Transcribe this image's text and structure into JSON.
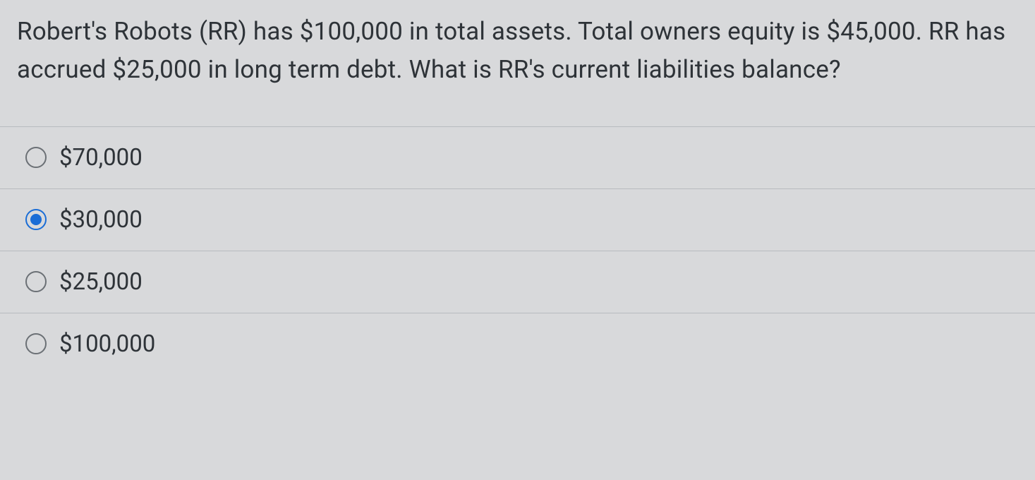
{
  "question": {
    "text": "Robert's Robots (RR) has $100,000 in total assets. Total owners equity is $45,000. RR has accrued $25,000 in long term debt. What is RR's current liabilities balance?"
  },
  "options": [
    {
      "label": "$70,000",
      "selected": false
    },
    {
      "label": "$30,000",
      "selected": true
    },
    {
      "label": "$25,000",
      "selected": false
    },
    {
      "label": "$100,000",
      "selected": false
    }
  ],
  "colors": {
    "background": "#d8d9db",
    "text": "#2e3338",
    "radio_border": "#6b7075",
    "radio_selected": "#1a6dd6",
    "divider": "#b8bbbf"
  }
}
